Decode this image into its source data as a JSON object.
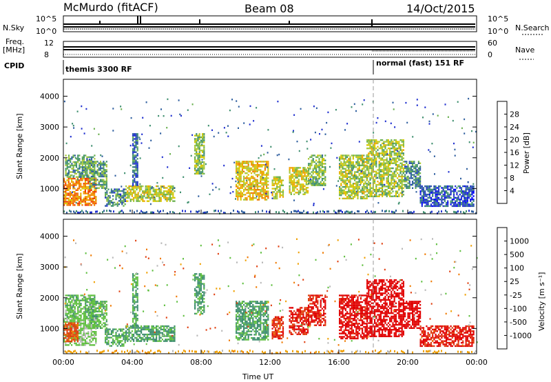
{
  "header": {
    "station": "McMurdo (fitACF)",
    "beam": "Beam 08",
    "date": "14/Oct/2015"
  },
  "param_panels": {
    "nsky_label": "N.Sky",
    "nsky_ticks": [
      "10^5",
      "10^0"
    ],
    "nsearch_label": "N.Search",
    "nsearch_ticks": [
      "10^5",
      "10^0"
    ],
    "freq_label": [
      "Freq.",
      "[MHz]"
    ],
    "freq_ticks": [
      "12",
      "8"
    ],
    "nave_label": "Nave",
    "nave_ticks": [
      "60",
      "0"
    ],
    "cpid_label": "CPID",
    "cpid_segments": [
      "themis 3300 RF",
      "normal (fast) 151 RF"
    ]
  },
  "colorbars": {
    "power": {
      "label": "Power [dB]",
      "ticks": [
        "28",
        "24",
        "20",
        "16",
        "12",
        "8",
        "4"
      ],
      "colors": [
        "#e00000",
        "#f04000",
        "#f07a00",
        "#f0a000",
        "#d8c800",
        "#a8c838",
        "#6ab050",
        "#3f8f6f",
        "#2f5f9f",
        "#2030d0",
        "#0000ff"
      ]
    },
    "velocity": {
      "label": "Velocity [m s⁻¹]",
      "ticks": [
        "1000",
        "500",
        "100",
        "25",
        "-25",
        "-100",
        "-500",
        "-1000"
      ],
      "colors": [
        "#2040c0",
        "#2f6fa0",
        "#3f8f6f",
        "#5fbf3f",
        "#b8b8b8",
        "#f0a000",
        "#f07a00",
        "#e04010",
        "#e00000"
      ]
    }
  },
  "chart_data": [
    {
      "type": "heatmap",
      "name": "power",
      "ylabel": "Slant Range [km]",
      "xlabel": "",
      "x_ticks": [
        "00:00",
        "04:00",
        "08:00",
        "12:00",
        "16:00",
        "20:00",
        "00:00"
      ],
      "y_ticks": [
        "1000",
        "2000",
        "3000",
        "4000"
      ],
      "xlim_hours": [
        0,
        24
      ],
      "ylim_km": [
        180,
        4550
      ],
      "cmap_range_db": [
        0,
        32
      ],
      "marker_line_hours": 18,
      "regions": [
        {
          "t0": 0.0,
          "t1": 1.9,
          "r0": 450,
          "r1": 1350,
          "v": 24
        },
        {
          "t0": 0.1,
          "t1": 1.8,
          "r0": 1400,
          "r1": 2100,
          "v": 12
        },
        {
          "t0": 1.5,
          "t1": 2.5,
          "r0": 1000,
          "r1": 1900,
          "v": 12
        },
        {
          "t0": 2.4,
          "t1": 3.6,
          "r0": 450,
          "r1": 1000,
          "v": 10
        },
        {
          "t0": 3.6,
          "t1": 6.5,
          "r0": 600,
          "r1": 1100,
          "v": 17
        },
        {
          "t0": 4.0,
          "t1": 4.3,
          "r0": 1100,
          "r1": 2800,
          "v": 8
        },
        {
          "t0": 7.6,
          "t1": 8.2,
          "r0": 1500,
          "r1": 2800,
          "v": 14
        },
        {
          "t0": 10.0,
          "t1": 11.9,
          "r0": 650,
          "r1": 1900,
          "v": 20
        },
        {
          "t0": 12.1,
          "t1": 12.8,
          "r0": 700,
          "r1": 1400,
          "v": 18
        },
        {
          "t0": 13.1,
          "t1": 14.2,
          "r0": 800,
          "r1": 1700,
          "v": 18
        },
        {
          "t0": 14.2,
          "t1": 15.2,
          "r0": 1100,
          "r1": 2100,
          "v": 14
        },
        {
          "t0": 16.0,
          "t1": 17.6,
          "r0": 700,
          "r1": 2100,
          "v": 16
        },
        {
          "t0": 17.6,
          "t1": 19.8,
          "r0": 750,
          "r1": 2600,
          "v": 16
        },
        {
          "t0": 19.8,
          "t1": 20.7,
          "r0": 1000,
          "r1": 1900,
          "v": 10
        },
        {
          "t0": 20.7,
          "t1": 23.8,
          "r0": 450,
          "r1": 1100,
          "v": 6
        }
      ]
    },
    {
      "type": "heatmap",
      "name": "velocity",
      "ylabel": "Slant Range [km]",
      "xlabel": "Time UT",
      "x_ticks": [
        "00:00",
        "04:00",
        "08:00",
        "12:00",
        "16:00",
        "20:00",
        "00:00"
      ],
      "y_ticks": [
        "1000",
        "2000",
        "3000",
        "4000"
      ],
      "xlim_hours": [
        0,
        24
      ],
      "ylim_km": [
        180,
        4550
      ],
      "marker_line_hours": 18,
      "regions": [
        {
          "t0": 0.0,
          "t1": 1.9,
          "r0": 450,
          "r1": 1350,
          "v": 150
        },
        {
          "t0": 0.0,
          "t1": 0.8,
          "r0": 600,
          "r1": 1200,
          "v": -150
        },
        {
          "t0": 0.1,
          "t1": 1.8,
          "r0": 1400,
          "r1": 2100,
          "v": 200
        },
        {
          "t0": 1.5,
          "t1": 2.5,
          "r0": 1000,
          "r1": 1900,
          "v": 200
        },
        {
          "t0": 2.4,
          "t1": 3.6,
          "r0": 450,
          "r1": 1000,
          "v": 250
        },
        {
          "t0": 3.6,
          "t1": 6.5,
          "r0": 600,
          "r1": 1100,
          "v": 300
        },
        {
          "t0": 4.0,
          "t1": 4.3,
          "r0": 1100,
          "r1": 2800,
          "v": 250
        },
        {
          "t0": 7.6,
          "t1": 8.2,
          "r0": 1500,
          "r1": 2800,
          "v": 300
        },
        {
          "t0": 10.0,
          "t1": 11.9,
          "r0": 650,
          "r1": 1900,
          "v": 300
        },
        {
          "t0": 12.1,
          "t1": 12.8,
          "r0": 700,
          "r1": 1400,
          "v": -200
        },
        {
          "t0": 13.1,
          "t1": 14.2,
          "r0": 800,
          "r1": 1700,
          "v": -300
        },
        {
          "t0": 14.2,
          "t1": 15.2,
          "r0": 1100,
          "r1": 2100,
          "v": -300
        },
        {
          "t0": 16.0,
          "t1": 17.6,
          "r0": 700,
          "r1": 2100,
          "v": -400
        },
        {
          "t0": 17.6,
          "t1": 19.8,
          "r0": 750,
          "r1": 2600,
          "v": -600
        },
        {
          "t0": 19.8,
          "t1": 20.7,
          "r0": 1000,
          "r1": 1900,
          "v": -500
        },
        {
          "t0": 20.7,
          "t1": 23.8,
          "r0": 450,
          "r1": 1100,
          "v": -300
        }
      ]
    }
  ]
}
